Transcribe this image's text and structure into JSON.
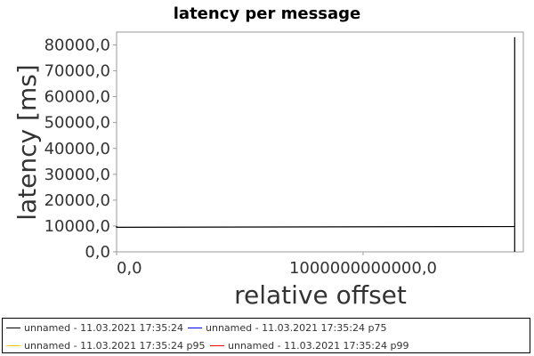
{
  "chart_data": {
    "type": "line",
    "title": "latency per message",
    "xlabel": "relative offset",
    "ylabel": "latency [ms]",
    "xlim": [
      0,
      1650000000000
    ],
    "ylim": [
      0,
      85000
    ],
    "x_ticks": [
      {
        "value": 0,
        "label": "0,0"
      },
      {
        "value": 1000000000000,
        "label": "1000000000000,0"
      }
    ],
    "y_ticks": [
      {
        "value": 0,
        "label": "0,0"
      },
      {
        "value": 10000,
        "label": "10000,0"
      },
      {
        "value": 20000,
        "label": "20000,0"
      },
      {
        "value": 30000,
        "label": "30000,0"
      },
      {
        "value": 40000,
        "label": "40000,0"
      },
      {
        "value": 50000,
        "label": "50000,0"
      },
      {
        "value": 60000,
        "label": "60000,0"
      },
      {
        "value": 70000,
        "label": "70000,0"
      },
      {
        "value": 80000,
        "label": "80000,0"
      }
    ],
    "grid": false,
    "legend_position": "bottom",
    "series": [
      {
        "name": "unnamed - 11.03.2021 17:35:24",
        "color": "#000000",
        "points": [
          [
            0,
            10000
          ],
          [
            0,
            9500
          ],
          [
            1615000000000,
            9800
          ],
          [
            1615000000000,
            83000
          ],
          [
            1615000000000,
            0
          ]
        ]
      },
      {
        "name": "unnamed - 11.03.2021 17:35:24 p75",
        "color": "#0000ff",
        "points": []
      },
      {
        "name": "unnamed - 11.03.2021 17:35:24 p95",
        "color": "#ffcc00",
        "points": []
      },
      {
        "name": "unnamed - 11.03.2021 17:35:24 p99",
        "color": "#ff0000",
        "points": []
      }
    ]
  }
}
